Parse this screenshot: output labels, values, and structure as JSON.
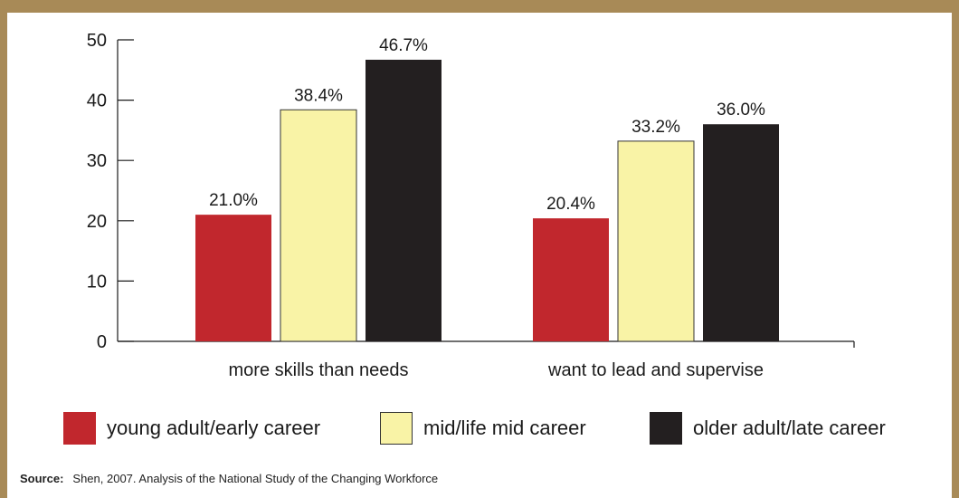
{
  "chart_data": {
    "type": "bar",
    "categories": [
      "more skills than needs",
      "want to lead and supervise"
    ],
    "series": [
      {
        "name": "young adult/early career",
        "color": "#c1272d",
        "values": [
          21.0,
          20.4
        ],
        "labels": [
          "21.0%",
          "20.4%"
        ]
      },
      {
        "name": "mid/life mid career",
        "color": "#f9f3a6",
        "values": [
          38.4,
          33.2
        ],
        "labels": [
          "38.4%",
          "33.2%"
        ]
      },
      {
        "name": "older adult/late career",
        "color": "#231f20",
        "values": [
          46.7,
          36.0
        ],
        "labels": [
          "46.7%",
          "36.0%"
        ]
      }
    ],
    "ylim": [
      0,
      50
    ],
    "yticks": [
      0,
      10,
      20,
      30,
      40,
      50
    ],
    "grid": false,
    "legend_position": "bottom"
  },
  "legend": {
    "items": [
      {
        "label": "young adult/early career",
        "color": "#c1272d"
      },
      {
        "label": "mid/life mid career",
        "color": "#f9f3a6"
      },
      {
        "label": "older adult/late career",
        "color": "#231f20"
      }
    ]
  },
  "source": {
    "label": "Source:",
    "text": "Shen, 2007.  Analysis of the National Study of the Changing Workforce"
  },
  "colors": {
    "frame": "#a88a57"
  }
}
